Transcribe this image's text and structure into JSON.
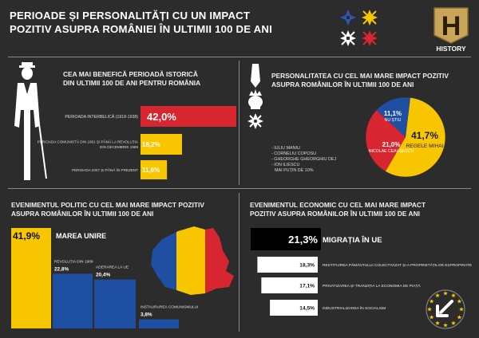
{
  "header": {
    "title_line1": "PERIOADE ȘI PERSONALITĂȚI CU UN IMPACT",
    "title_line2": "POZITIV ASUPRA ROMÂNIEI ÎN ULTIMII 100 DE ANI",
    "brand": "HISTORY",
    "colors": {
      "red": "#d7262f",
      "yellow": "#f7c600",
      "blue": "#1f4fa3",
      "white": "#ffffff"
    }
  },
  "periods": {
    "heading_line1": "CEA MAI BENEFICĂ PERIOADĂ ISTORICĂ",
    "heading_line2": "DIN ULTIMII 100 DE ANI PENTRU ROMÂNIA"
  },
  "people": {
    "heading_line1": "PERSONALITATEA CU CEL MAI MARE IMPACT POZITIV",
    "heading_line2": "ASUPRA ROMÂNILOR ÎN ULTIMII 100 DE ANI",
    "others": [
      "- IULIU MANIU",
      "- CORNELIU COPOSU",
      "- GHEORGHE GHEORGHIU DEJ",
      "- ION ILIESCU"
    ],
    "others_note": "MAI PUȚIN DE 10%"
  },
  "political": {
    "heading_line1": "EVENIMENTUL POLITIC CU CEL MAI MARE IMPACT POZITIV",
    "heading_line2": "ASUPRA ROMÂNILOR ÎN ULTIMII 100 DE ANI"
  },
  "economic": {
    "heading_line1": "EVENIMENTUL ECONOMIC CU CEL MAI MARE IMPACT",
    "heading_line2": "POZITIV ASUPRA ROMÂNILOR ÎN ULTIMII 100 DE ANI"
  },
  "chart_data": [
    {
      "type": "bar",
      "orientation": "horizontal",
      "categories": [
        "PERIOADA INTERBELICĂ (1918-1938)",
        "PERIOADA COMUNISTĂ DIN 1961 ȘI PÂNĂ LA REVOLUȚIA DIN DECEMBRIE 1989",
        "PERIOADA 2007 ȘI PÂNĂ ÎN PREZENT"
      ],
      "values": [
        42.0,
        18.2,
        11.6
      ],
      "labels": [
        "42,0%",
        "18,2%",
        "11,6%"
      ],
      "colors": [
        "#d7262f",
        "#f7c600",
        "#f7c600"
      ]
    },
    {
      "type": "pie",
      "categories": [
        "REGELE MIHAI",
        "NICOLAE CEAUȘESCU",
        "NU ȘTIU"
      ],
      "values": [
        41.7,
        21.0,
        11.1
      ],
      "labels": [
        "41,7%",
        "21,0%",
        "11,1%"
      ],
      "colors": [
        "#f7c600",
        "#d7262f",
        "#1f4fa3"
      ]
    },
    {
      "type": "bar",
      "orientation": "vertical",
      "categories": [
        "MAREA UNIRE",
        "REVOLUȚIA DIN 1989",
        "ADERAREA LA UE",
        "INSTAURAREA COMUNISMULUI"
      ],
      "values": [
        41.9,
        22.8,
        20.4,
        3.8
      ],
      "labels": [
        "41,9%",
        "22,8%",
        "20,4%",
        "3,8%"
      ],
      "colors": [
        "#f7c600",
        "#1f4fa3",
        "#1f4fa3",
        "#1f4fa3"
      ]
    },
    {
      "type": "bar",
      "orientation": "horizontal",
      "categories": [
        "MIGRAȚIA ÎN UE",
        "RESTITUIREA PĂMÂNTULUI COLECTIVIZAT ȘI A PROPRIETĂȚILOR EXPROPRIATE",
        "PRIVATIZAREA ȘI TRANZIȚIA LA ECONOMIA DE PIAȚĂ",
        "INDUSTRIALIZAREA ÎN SOCIALISM"
      ],
      "values": [
        21.3,
        18.3,
        17.1,
        14.5
      ],
      "labels": [
        "21,3%",
        "18,3%",
        "17,1%",
        "14,5%"
      ],
      "colors": [
        "#000000",
        "#ffffff",
        "#ffffff",
        "#ffffff"
      ]
    }
  ]
}
